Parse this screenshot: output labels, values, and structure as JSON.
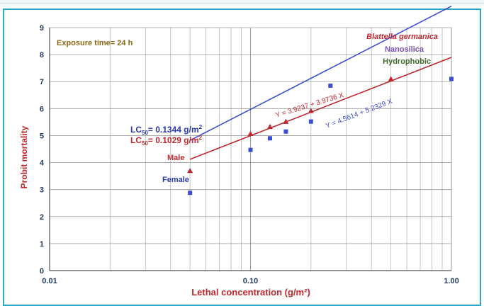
{
  "chart_data": {
    "type": "scatter",
    "xscale": "log",
    "xlim": [
      0.01,
      1.0
    ],
    "ylim": [
      0,
      9
    ],
    "grid": true,
    "xlabel": "Lethal concentration (g/m²)",
    "ylabel": "Probit mortality",
    "x_tick_labels": [
      "0.01",
      "0.10",
      "1.00"
    ],
    "y_tick_labels": [
      "0",
      "1",
      "2",
      "3",
      "4",
      "5",
      "6",
      "7",
      "8",
      "9"
    ],
    "series": [
      {
        "name": "Male",
        "marker": "triangle",
        "color": "#c0282f",
        "points": [
          [
            0.05,
            3.7
          ],
          [
            0.1,
            5.07
          ],
          [
            0.125,
            5.33
          ],
          [
            0.15,
            5.52
          ],
          [
            0.2,
            5.92
          ],
          [
            0.5,
            7.1
          ]
        ],
        "fit": {
          "label": "Y = 3.9237 + 3.9736 X",
          "intercept": 3.9237,
          "slope": 3.9736,
          "x_range": [
            0.05,
            1.0
          ]
        }
      },
      {
        "name": "Female",
        "marker": "square",
        "color": "#3b4ed0",
        "points": [
          [
            0.05,
            2.88
          ],
          [
            0.1,
            4.47
          ],
          [
            0.125,
            4.9
          ],
          [
            0.15,
            5.15
          ],
          [
            0.2,
            5.52
          ],
          [
            0.25,
            6.85
          ],
          [
            1.0,
            7.1
          ]
        ],
        "fit": {
          "label": "Y = 4.5614 + 5.2329 X",
          "intercept": 4.5614,
          "slope": 5.2329,
          "x_range": [
            0.05,
            1.0
          ]
        }
      }
    ],
    "annotations": {
      "exposure": "Exposure time= 24 h",
      "lc50_female": "= 0.1344  g/m",
      "lc50_male": "= 0.1029 g/m",
      "lc_prefix": "LC",
      "lc_sub": "50",
      "sup2": "2",
      "species": "Blattella germanica",
      "material": "Nanosilica",
      "type_label": "Hydrophobic"
    },
    "colors": {
      "axis_text": "#1f3b63",
      "label_red": "#c0282f",
      "lc_blue": "#2838b0",
      "species_red": "#c0282f",
      "material_purple": "#7a4fb5",
      "type_green": "#3c6b2a",
      "exposure_gold": "#8b6914",
      "frame": "#29a9c8"
    }
  }
}
